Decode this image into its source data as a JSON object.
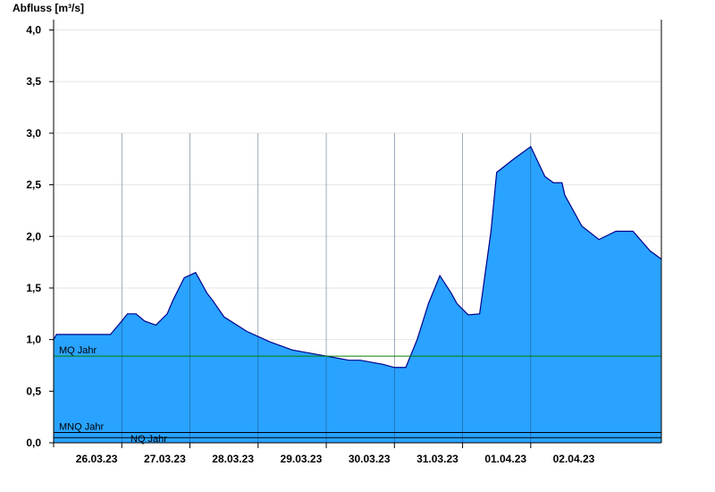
{
  "chart_data": {
    "type": "area",
    "ylabel": "Abfluss [m³/s]",
    "ylim": [
      0,
      4.1
    ],
    "yticks": [
      0,
      0.5,
      1.0,
      1.5,
      2.0,
      2.5,
      3.0,
      3.5,
      4.0
    ],
    "ytick_labels": [
      "0,0",
      "0,5",
      "1,0",
      "1,5",
      "2,0",
      "2,5",
      "3,0",
      "3,5",
      "4,0"
    ],
    "xlim": [
      "2023-03-25T12:00",
      "2023-04-03T10:00"
    ],
    "xticks": [
      "2023-03-26T00:00",
      "2023-03-27T00:00",
      "2023-03-28T00:00",
      "2023-03-29T00:00",
      "2023-03-30T00:00",
      "2023-03-31T00:00",
      "2023-04-01T00:00",
      "2023-04-02T00:00"
    ],
    "xtick_labels": [
      "26.03.23",
      "27.03.23",
      "28.03.23",
      "29.03.23",
      "30.03.23",
      "31.03.23",
      "01.04.23",
      "02.04.23"
    ],
    "grid": true,
    "fill_color": "#29a3ff",
    "line_color": "#00008b",
    "series": [
      {
        "x": [
          "2023-03-25T12:00",
          "2023-03-25T13:00",
          "2023-03-25T17:00",
          "2023-03-26T00:00",
          "2023-03-26T08:00",
          "2023-03-26T12:00",
          "2023-03-26T14:00",
          "2023-03-26T17:00",
          "2023-03-26T20:00",
          "2023-03-27T00:00",
          "2023-03-27T04:00",
          "2023-03-27T06:00",
          "2023-03-27T10:00",
          "2023-03-27T14:00",
          "2023-03-27T18:00",
          "2023-03-27T20:00",
          "2023-03-28T00:00",
          "2023-03-28T08:00",
          "2023-03-28T16:00",
          "2023-03-29T00:00",
          "2023-03-29T12:00",
          "2023-03-29T20:00",
          "2023-03-30T00:00",
          "2023-03-30T08:00",
          "2023-03-30T12:00",
          "2023-03-30T16:00",
          "2023-03-30T20:00",
          "2023-03-31T00:00",
          "2023-03-31T04:00",
          "2023-03-31T08:00",
          "2023-03-31T10:00",
          "2023-03-31T14:00",
          "2023-03-31T18:00",
          "2023-03-31T22:00",
          "2023-04-01T00:00",
          "2023-04-01T06:00",
          "2023-04-01T12:00",
          "2023-04-01T17:00",
          "2023-04-01T20:00",
          "2023-04-01T23:00",
          "2023-04-02T00:00",
          "2023-04-02T06:00",
          "2023-04-02T12:00",
          "2023-04-02T18:00",
          "2023-04-03T00:00",
          "2023-04-03T06:00",
          "2023-04-03T10:00"
        ],
        "values": [
          1.0,
          1.05,
          1.05,
          1.05,
          1.05,
          1.18,
          1.25,
          1.25,
          1.18,
          1.14,
          1.25,
          1.38,
          1.6,
          1.65,
          1.45,
          1.38,
          1.22,
          1.08,
          0.98,
          0.9,
          0.84,
          0.8,
          0.8,
          0.76,
          0.73,
          0.73,
          1.0,
          1.35,
          1.62,
          1.45,
          1.35,
          1.24,
          1.25,
          2.05,
          2.62,
          2.75,
          2.87,
          2.58,
          2.52,
          2.52,
          2.4,
          2.1,
          1.97,
          2.05,
          2.05,
          1.86,
          1.78
        ]
      }
    ],
    "reference_lines": [
      {
        "name": "MQ Jahr",
        "value": 0.84,
        "color": "#008000"
      },
      {
        "name": "MNQ Jahr",
        "value": 0.1,
        "color": "#000000"
      },
      {
        "name": "NQ Jahr",
        "value": 0.05,
        "color": "#000000"
      }
    ]
  }
}
